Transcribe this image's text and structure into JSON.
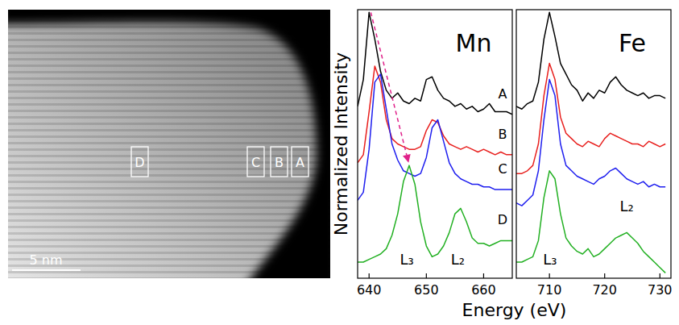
{
  "image": {
    "scale_bar": "5 nm",
    "regions": [
      "D",
      "C",
      "B",
      "A"
    ]
  },
  "figure": {
    "x_label": "Energy (eV)",
    "y_label": "Normalized Intensity"
  },
  "chart_data": [
    {
      "type": "line",
      "title": "Mn",
      "x": [
        638,
        639,
        640,
        641,
        642,
        643,
        644,
        645,
        646,
        647,
        648,
        649,
        650,
        651,
        652,
        653,
        654,
        655,
        656,
        657,
        658,
        659,
        660,
        661,
        662,
        663,
        664,
        665
      ],
      "xlim": [
        638,
        665
      ],
      "xticks": [
        640,
        650,
        660
      ],
      "ylim": [
        0,
        10
      ],
      "tick_labels": "x",
      "series": [
        {
          "name": "A",
          "color": "#000000",
          "values": [
            6.4,
            7.4,
            9.9,
            8.9,
            7.7,
            7.0,
            6.7,
            6.9,
            6.6,
            6.5,
            6.7,
            6.6,
            7.4,
            7.5,
            7.0,
            6.7,
            6.6,
            6.4,
            6.5,
            6.3,
            6.4,
            6.2,
            6.3,
            6.5,
            6.2,
            6.2,
            6.2,
            6.1
          ]
        },
        {
          "name": "B",
          "color": "#e8201e",
          "values": [
            4.3,
            4.6,
            6.2,
            7.9,
            7.3,
            5.9,
            5.2,
            5.0,
            4.9,
            4.8,
            4.8,
            4.9,
            5.5,
            5.9,
            5.8,
            5.3,
            5.0,
            4.9,
            4.8,
            4.9,
            4.8,
            4.7,
            4.8,
            4.7,
            4.6,
            4.7,
            4.6,
            4.6
          ]
        },
        {
          "name": "C",
          "color": "#1f1fef",
          "values": [
            2.9,
            3.2,
            4.8,
            7.3,
            7.6,
            6.3,
            5.0,
            4.4,
            4.0,
            3.9,
            3.8,
            3.9,
            4.5,
            5.6,
            5.9,
            5.1,
            4.3,
            3.9,
            3.7,
            3.6,
            3.5,
            3.5,
            3.4,
            3.4,
            3.3,
            3.3,
            3.3,
            3.3
          ]
        },
        {
          "name": "D",
          "color": "#22b022",
          "values": [
            0.6,
            0.6,
            0.7,
            0.8,
            0.9,
            1.1,
            1.6,
            2.4,
            3.6,
            4.2,
            3.5,
            2.1,
            1.2,
            0.8,
            0.9,
            1.2,
            1.7,
            2.4,
            2.6,
            2.1,
            1.5,
            1.3,
            1.3,
            1.2,
            1.3,
            1.4,
            1.4,
            1.4
          ]
        }
      ],
      "annotations": [
        {
          "text": "L₃",
          "x": 646.6,
          "y": 0.5
        },
        {
          "text": "L₂",
          "x": 655.5,
          "y": 0.5
        },
        {
          "type": "arrow",
          "from": [
            640.3,
            9.9
          ],
          "to": [
            646.9,
            4.3
          ],
          "color": "#e0218a",
          "line_style": "dashed"
        }
      ]
    },
    {
      "type": "line",
      "title": "Fe",
      "x": [
        704,
        705,
        706,
        707,
        708,
        709,
        710,
        711,
        712,
        713,
        714,
        715,
        716,
        717,
        718,
        719,
        720,
        721,
        722,
        723,
        724,
        725,
        726,
        727,
        728,
        729,
        730,
        731
      ],
      "xlim": [
        704,
        732
      ],
      "xticks": [
        710,
        720,
        730
      ],
      "ylim": [
        0,
        10
      ],
      "tick_labels": "x",
      "series": [
        {
          "color": "#000000",
          "values": [
            6.4,
            6.3,
            6.5,
            6.6,
            7.3,
            8.9,
            9.9,
            9.0,
            8.0,
            7.6,
            7.2,
            7.0,
            6.6,
            6.9,
            6.7,
            7.0,
            6.9,
            7.3,
            7.5,
            7.2,
            7.0,
            6.9,
            6.8,
            6.9,
            6.7,
            6.8,
            6.8,
            6.7
          ]
        },
        {
          "color": "#e8201e",
          "values": [
            3.9,
            3.9,
            4.0,
            4.2,
            5.0,
            6.8,
            8.0,
            7.4,
            6.0,
            5.4,
            5.2,
            5.0,
            4.9,
            5.1,
            5.0,
            4.9,
            5.2,
            5.4,
            5.3,
            5.2,
            5.1,
            5.0,
            5.0,
            4.9,
            5.1,
            5.0,
            4.9,
            5.0
          ]
        },
        {
          "color": "#1f1fef",
          "values": [
            2.8,
            2.7,
            2.9,
            3.1,
            4.0,
            5.9,
            7.4,
            6.8,
            5.0,
            4.2,
            4.0,
            3.8,
            3.7,
            3.6,
            3.5,
            3.7,
            3.8,
            4.0,
            4.1,
            3.9,
            3.7,
            3.6,
            3.5,
            3.6,
            3.4,
            3.5,
            3.4,
            3.4
          ]
        },
        {
          "color": "#22b022",
          "values": [
            0.6,
            0.6,
            0.7,
            0.8,
            1.4,
            3.0,
            4.0,
            3.7,
            2.4,
            1.5,
            1.2,
            1.0,
            0.9,
            1.1,
            0.8,
            0.9,
            1.1,
            1.3,
            1.5,
            1.6,
            1.7,
            1.5,
            1.3,
            1.0,
            0.8,
            0.6,
            0.4,
            0.2
          ]
        }
      ],
      "annotations": [
        {
          "text": "L₃",
          "x": 710.1,
          "y": 0.5
        },
        {
          "text": "L₂",
          "x": 724.0,
          "y": 2.5
        }
      ]
    }
  ]
}
